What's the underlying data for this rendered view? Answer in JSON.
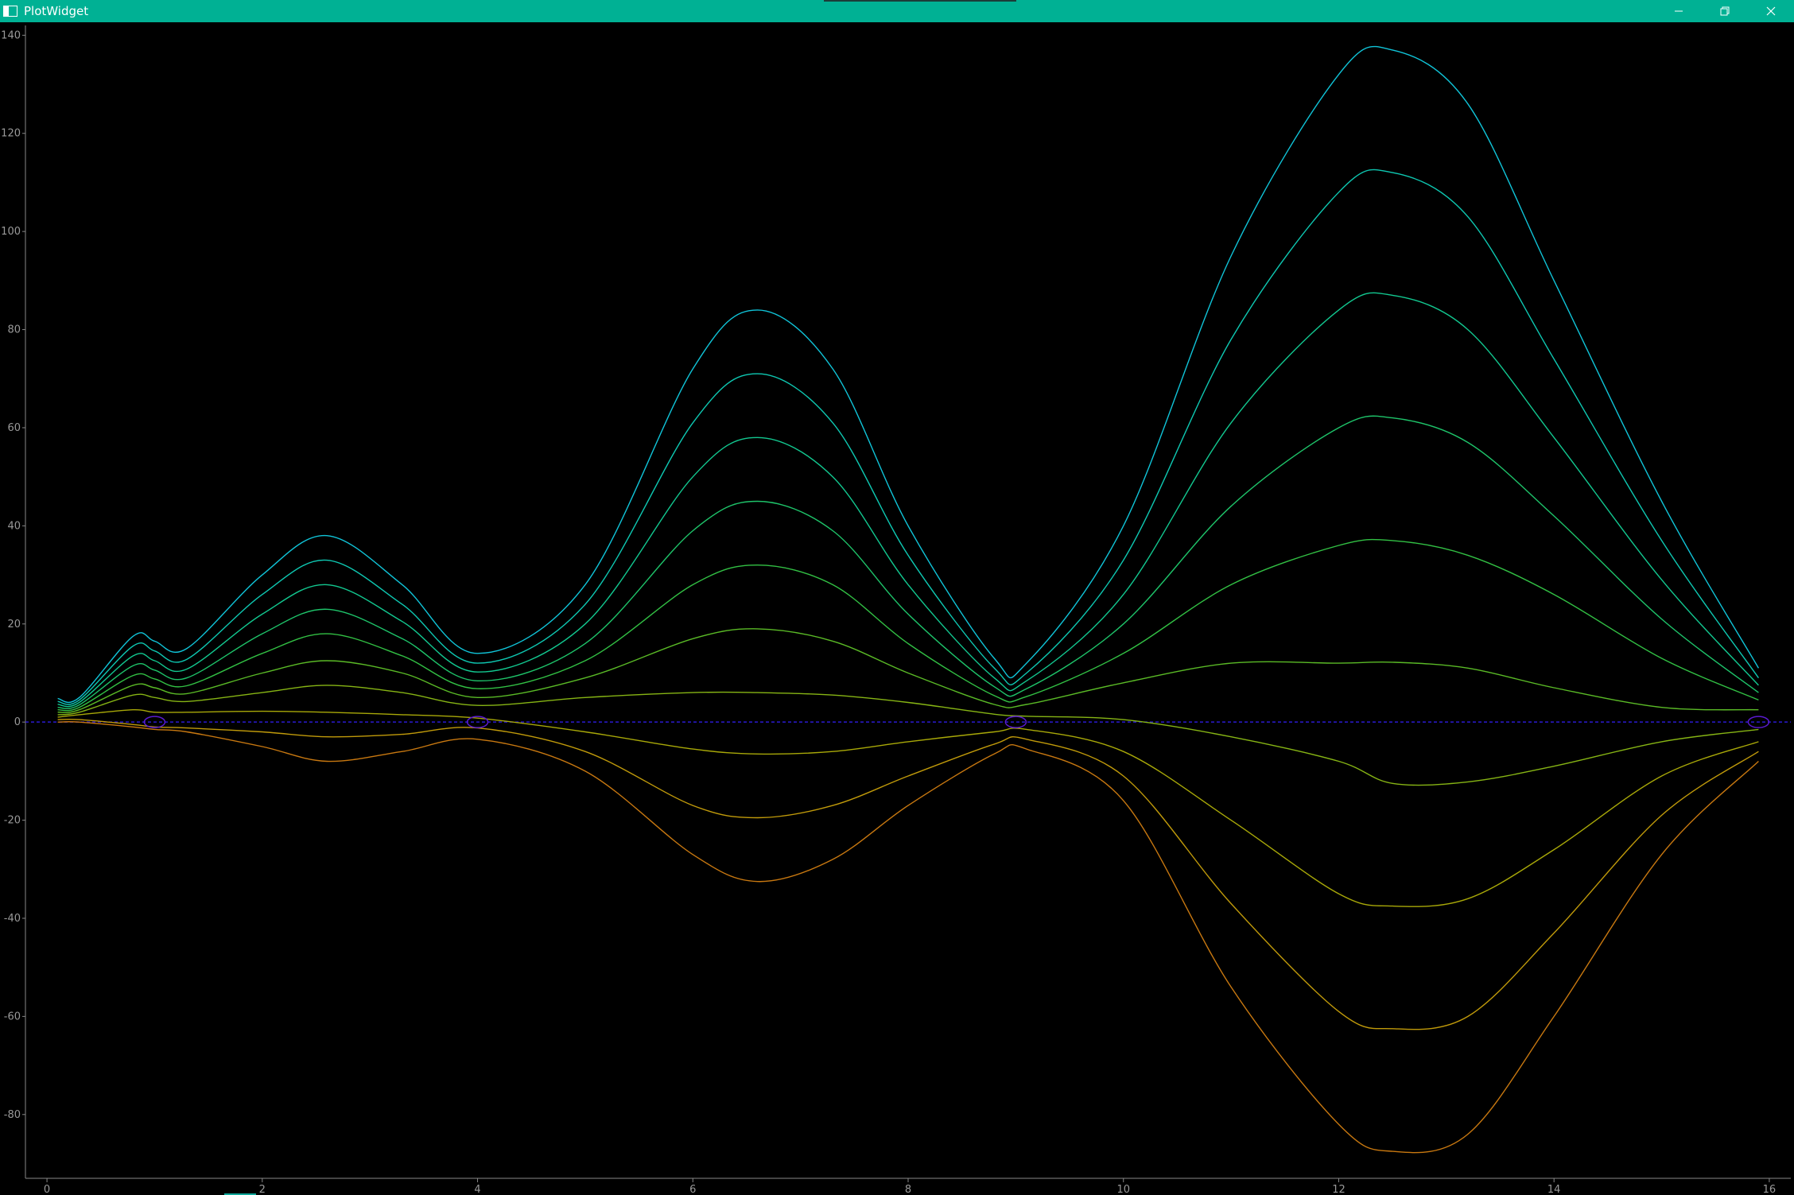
{
  "window": {
    "title": "PlotWidget",
    "titlebar_color": "#00b194",
    "controls": {
      "minimize_icon": "minimize-icon",
      "maximize_icon": "restore-icon",
      "close_icon": "close-icon"
    }
  },
  "chart_data": {
    "type": "line",
    "title": "",
    "xlabel": "",
    "ylabel": "",
    "xlim": [
      -0.2,
      16.2
    ],
    "ylim": [
      -93,
      142
    ],
    "x_ticks": [
      0,
      2,
      4,
      6,
      8,
      10,
      12,
      14,
      16
    ],
    "y_ticks": [
      140,
      120,
      100,
      80,
      60,
      40,
      20,
      0,
      -20,
      -40,
      -60,
      -80
    ],
    "background": "#000000",
    "axis_color": "#888888",
    "zero_line": {
      "y": 0,
      "color": "#2a1ad0",
      "style": "dashed"
    },
    "x": [
      0.1,
      0.3,
      0.8,
      1.0,
      1.3,
      2.0,
      2.6,
      3.3,
      4.0,
      5.0,
      6.0,
      6.6,
      7.3,
      8.0,
      8.8,
      9.1,
      10.0,
      11.0,
      12.0,
      12.5,
      13.2,
      14.0,
      15.0,
      15.9
    ],
    "series": [
      {
        "color": "#10c4d8",
        "values": [
          4.8,
          5,
          17.5,
          16.5,
          15,
          30,
          38,
          28,
          14,
          28,
          72,
          84,
          72,
          40,
          13,
          12,
          40,
          95,
          132,
          137,
          126,
          90,
          45,
          11
        ]
      },
      {
        "color": "#0ec8b2",
        "values": [
          4.2,
          4.5,
          15.5,
          14.5,
          12.8,
          26,
          33,
          24,
          12,
          24,
          61,
          71,
          61,
          34,
          11,
          10,
          33,
          78,
          108,
          112,
          103,
          74,
          37,
          9
        ]
      },
      {
        "color": "#12c890",
        "values": [
          3.6,
          4,
          13.5,
          12.5,
          10.8,
          22,
          28,
          20.5,
          10.2,
          20,
          50,
          58,
          50,
          28,
          9,
          8.4,
          26,
          61,
          84,
          87,
          80,
          58,
          29,
          7.5
        ]
      },
      {
        "color": "#1ec46a",
        "values": [
          3,
          3.5,
          11.5,
          10.6,
          9,
          18,
          23,
          17,
          8.4,
          16,
          39,
          45,
          39,
          22,
          7.2,
          6.8,
          20,
          44,
          60,
          62,
          57,
          42,
          21,
          6
        ]
      },
      {
        "color": "#32c044",
        "values": [
          2.5,
          3,
          9.5,
          8.8,
          7.4,
          14,
          18,
          13.5,
          6.8,
          12.5,
          28,
          32,
          28,
          16,
          5.4,
          5.2,
          14,
          28,
          36,
          37,
          34,
          26,
          13,
          4.5
        ]
      },
      {
        "color": "#5aba26",
        "values": [
          2,
          2.5,
          7.5,
          7,
          5.8,
          10,
          12.5,
          10,
          5,
          9,
          17,
          19,
          16.5,
          10,
          3.6,
          3.6,
          8,
          12,
          12,
          12.2,
          11,
          7,
          3,
          2.5
        ]
      },
      {
        "color": "#86b414",
        "values": [
          1.5,
          2,
          5.5,
          5,
          4.2,
          6,
          7.5,
          6,
          3.4,
          5,
          6,
          6,
          5.5,
          4,
          1.6,
          1.2,
          0.5,
          -3,
          -8,
          -12.5,
          -12.2,
          -9,
          -4,
          -1.5
        ]
      },
      {
        "color": "#a8a808",
        "values": [
          1,
          1.5,
          2.5,
          2,
          2,
          2.2,
          2,
          1.5,
          0.8,
          -2,
          -5.5,
          -6.5,
          -6,
          -4,
          -2,
          -1.5,
          -6,
          -20,
          -35,
          -37.5,
          -36,
          -26,
          -11,
          -4
        ]
      },
      {
        "color": "#c09a0a",
        "values": [
          0.5,
          0.5,
          -0.5,
          -1,
          -1.2,
          -2,
          -3,
          -2.5,
          -1.2,
          -6,
          -17,
          -19.5,
          -17,
          -11,
          -4.5,
          -3.5,
          -11,
          -37,
          -59,
          -62.5,
          -60,
          -43,
          -19,
          -6
        ]
      },
      {
        "color": "#c87810",
        "values": [
          0,
          0,
          -1,
          -1.5,
          -2,
          -5,
          -8,
          -6,
          -3.5,
          -10,
          -27,
          -32.5,
          -28,
          -17,
          -6.5,
          -5.5,
          -16,
          -54,
          -82,
          -87.5,
          -84,
          -60,
          -27,
          -8
        ]
      }
    ],
    "markers": [
      {
        "x": 1.0,
        "y": 0,
        "color": "#5a1ad0"
      },
      {
        "x": 4.0,
        "y": 0,
        "color": "#5a1ad0"
      },
      {
        "x": 9.0,
        "y": 0,
        "color": "#5a1ad0"
      },
      {
        "x": 15.9,
        "y": 0,
        "color": "#5a1ad0"
      }
    ]
  }
}
